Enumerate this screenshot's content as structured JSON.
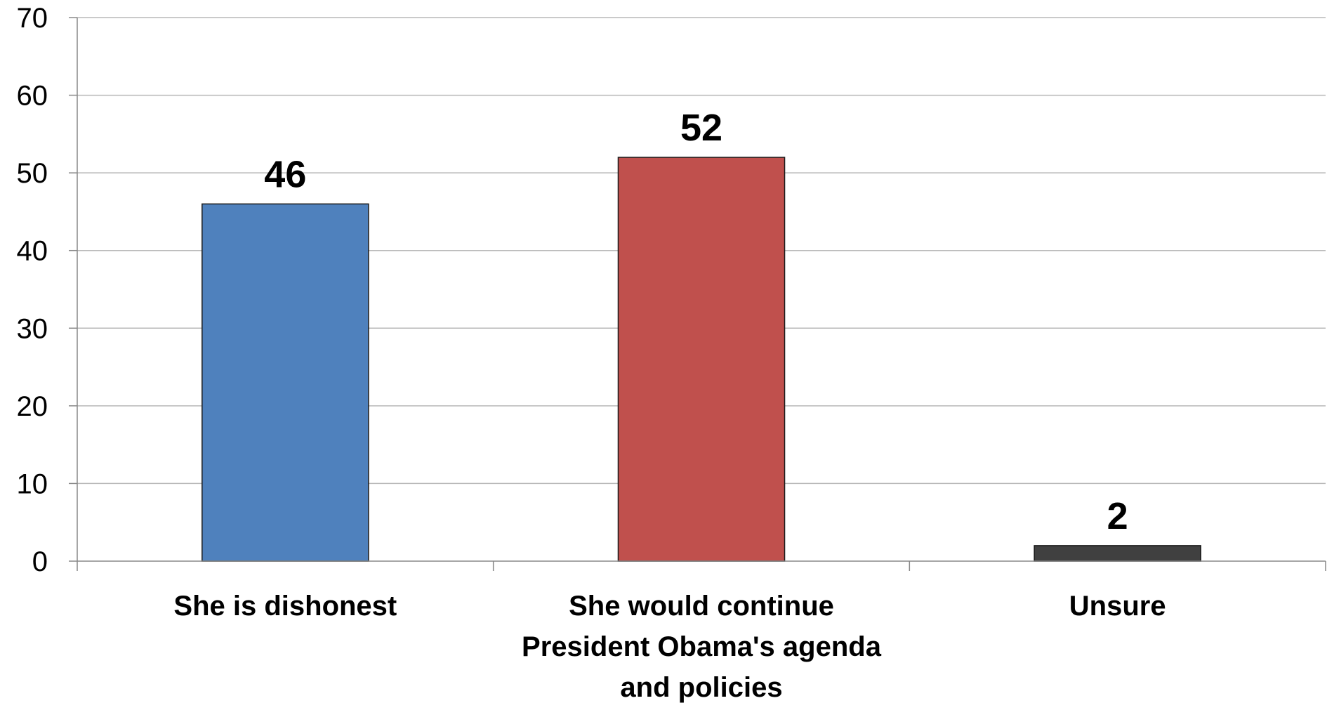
{
  "chart_data": {
    "type": "bar",
    "categories": [
      [
        "She is dishonest"
      ],
      [
        "She would continue",
        "President Obama's agenda",
        "and policies"
      ],
      [
        "Unsure"
      ]
    ],
    "values": [
      46,
      52,
      2
    ],
    "value_labels": [
      "46",
      "52",
      "2"
    ],
    "colors": [
      "#4f81bd",
      "#c0504d",
      "#404040"
    ],
    "ylim": [
      0,
      70
    ],
    "yticks": [
      0,
      10,
      20,
      30,
      40,
      50,
      60,
      70
    ],
    "title": "",
    "xlabel": "",
    "ylabel": "",
    "grid": true,
    "legend": "none"
  }
}
